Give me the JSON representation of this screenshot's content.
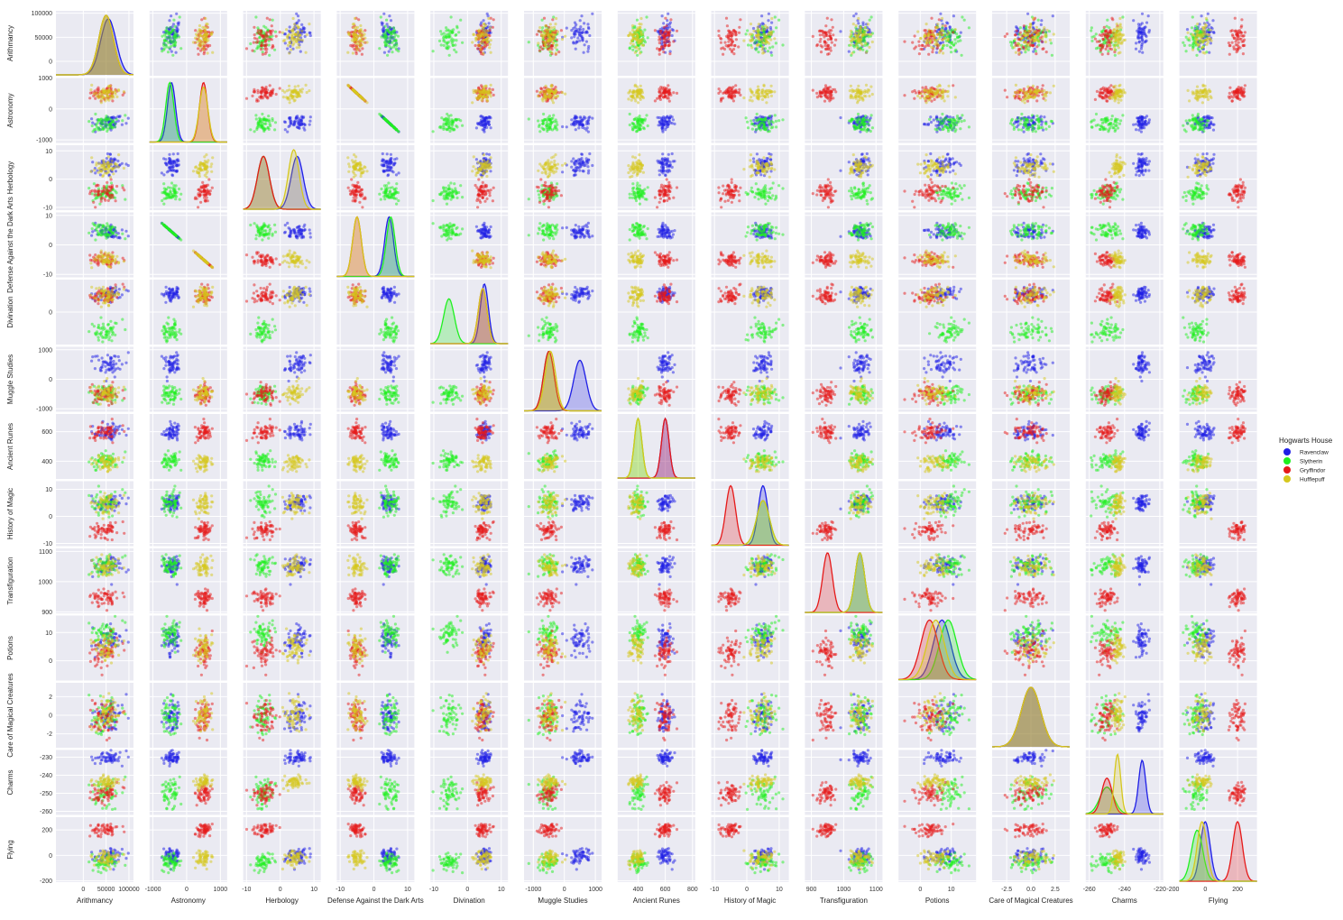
{
  "chart_data": {
    "type": "scatter",
    "title": "",
    "variables": [
      {
        "name": "Arithmancy",
        "range": [
          -60000,
          110000
        ],
        "ticks": [
          0,
          50000,
          100000
        ],
        "tick_labels": [
          "0",
          "50000",
          "100000"
        ],
        "means": {
          "Ravenclaw": 55000,
          "Slytherin": 50000,
          "Gryffindor": 50000,
          "Hufflepuff": 50000
        },
        "sds": {
          "Ravenclaw": 17000,
          "Slytherin": 16000,
          "Gryffindor": 16000,
          "Hufflepuff": 16000
        }
      },
      {
        "name": "Astronomy",
        "range": [
          -1100,
          1200
        ],
        "ticks": [
          -1000,
          0,
          1000
        ],
        "tick_labels": [
          "-1000",
          "0",
          "1000"
        ],
        "means": {
          "Ravenclaw": -450,
          "Slytherin": -500,
          "Gryffindor": 500,
          "Hufflepuff": 500
        },
        "sds": {
          "Ravenclaw": 120,
          "Slytherin": 120,
          "Gryffindor": 120,
          "Hufflepuff": 130
        }
      },
      {
        "name": "Herbology",
        "range": [
          -11,
          12
        ],
        "ticks": [
          -10,
          0,
          10
        ],
        "tick_labels": [
          "-10",
          "0",
          "10"
        ],
        "means": {
          "Ravenclaw": 5,
          "Slytherin": -5,
          "Gryffindor": -5,
          "Hufflepuff": 4
        },
        "sds": {
          "Ravenclaw": 1.8,
          "Slytherin": 1.8,
          "Gryffindor": 1.8,
          "Hufflepuff": 1.6
        }
      },
      {
        "name": "Defense Against the Dark Arts",
        "range": [
          -11,
          12
        ],
        "ticks": [
          -10,
          0,
          10
        ],
        "tick_labels": [
          "-10",
          "0",
          "10"
        ],
        "means": {
          "Ravenclaw": 4.5,
          "Slytherin": 5,
          "Gryffindor": -5,
          "Hufflepuff": -5
        },
        "sds": {
          "Ravenclaw": 1.3,
          "Slytherin": 1.3,
          "Gryffindor": 1.3,
          "Hufflepuff": 1.3
        }
      },
      {
        "name": "Divination",
        "range": [
          -11,
          12
        ],
        "ticks": [
          -10,
          0,
          10
        ],
        "tick_labels": [
          "-10",
          "0",
          "10"
        ],
        "means": {
          "Ravenclaw": 5,
          "Slytherin": -5.5,
          "Gryffindor": 4.5,
          "Hufflepuff": 4.5
        },
        "sds": {
          "Ravenclaw": 1.2,
          "Slytherin": 1.6,
          "Gryffindor": 1.3,
          "Hufflepuff": 1.3
        }
      },
      {
        "name": "Muggle Studies",
        "range": [
          -1300,
          1200
        ],
        "ticks": [
          -1000,
          0,
          1000
        ],
        "tick_labels": [
          "-1000",
          "0",
          "1000"
        ],
        "means": {
          "Ravenclaw": 500,
          "Slytherin": -500,
          "Gryffindor": -500,
          "Hufflepuff": -450
        },
        "sds": {
          "Ravenclaw": 200,
          "Slytherin": 170,
          "Gryffindor": 170,
          "Hufflepuff": 170
        }
      },
      {
        "name": "Ancient Runes",
        "range": [
          250,
          820
        ],
        "ticks": [
          400,
          600,
          800
        ],
        "tick_labels": [
          "400",
          "600",
          "800"
        ],
        "means": {
          "Ravenclaw": 600,
          "Slytherin": 400,
          "Gryffindor": 600,
          "Hufflepuff": 400
        },
        "sds": {
          "Ravenclaw": 28,
          "Slytherin": 28,
          "Gryffindor": 28,
          "Hufflepuff": 28
        }
      },
      {
        "name": "History of Magic",
        "range": [
          -11,
          13
        ],
        "ticks": [
          -10,
          0,
          10
        ],
        "tick_labels": [
          "-10",
          "0",
          "10"
        ],
        "means": {
          "Ravenclaw": 5,
          "Slytherin": 5,
          "Gryffindor": -5,
          "Hufflepuff": 5
        },
        "sds": {
          "Ravenclaw": 1.5,
          "Slytherin": 2,
          "Gryffindor": 1.5,
          "Hufflepuff": 2
        }
      },
      {
        "name": "Transfiguration",
        "range": [
          880,
          1120
        ],
        "ticks": [
          900,
          1000,
          1100
        ],
        "tick_labels": [
          "900",
          "1000",
          "1100"
        ],
        "means": {
          "Ravenclaw": 1050,
          "Slytherin": 1050,
          "Gryffindor": 950,
          "Hufflepuff": 1050
        },
        "sds": {
          "Ravenclaw": 15,
          "Slytherin": 15,
          "Gryffindor": 15,
          "Hufflepuff": 15
        }
      },
      {
        "name": "Potions",
        "range": [
          -7,
          18
        ],
        "ticks": [
          0,
          10
        ],
        "tick_labels": [
          "0",
          "10"
        ],
        "means": {
          "Ravenclaw": 7,
          "Slytherin": 9,
          "Gryffindor": 3,
          "Hufflepuff": 5
        },
        "sds": {
          "Ravenclaw": 2.8,
          "Slytherin": 2.8,
          "Gryffindor": 2.8,
          "Hufflepuff": 2.8
        }
      },
      {
        "name": "Care of Magical Creatures",
        "range": [
          -4,
          4
        ],
        "ticks": [
          -2.5,
          0,
          2.5
        ],
        "tick_labels": [
          "-2.5",
          "0.0",
          "2.5"
        ],
        "means": {
          "Ravenclaw": 0,
          "Slytherin": 0,
          "Gryffindor": 0,
          "Hufflepuff": 0
        },
        "sds": {
          "Ravenclaw": 1,
          "Slytherin": 1,
          "Gryffindor": 1,
          "Hufflepuff": 1
        }
      },
      {
        "name": "Charms",
        "range": [
          -262,
          -218
        ],
        "ticks": [
          -260,
          -240,
          -220
        ],
        "tick_labels": [
          "-260",
          "-240",
          "-220"
        ],
        "means": {
          "Ravenclaw": -230,
          "Slytherin": -250,
          "Gryffindor": -250,
          "Hufflepuff": -244
        },
        "sds": {
          "Ravenclaw": 2,
          "Slytherin": 4,
          "Gryffindor": 3,
          "Hufflepuff": 1.8
        }
      },
      {
        "name": "Flying",
        "range": [
          -160,
          320
        ],
        "ticks": [
          -200,
          0,
          200
        ],
        "tick_labels": [
          "-200",
          "0",
          "200"
        ],
        "means": {
          "Ravenclaw": 0,
          "Slytherin": -50,
          "Gryffindor": 200,
          "Hufflepuff": -20
        },
        "sds": {
          "Ravenclaw": 30,
          "Slytherin": 35,
          "Gryffindor": 30,
          "Hufflepuff": 30
        }
      }
    ],
    "y_tick_overrides": {
      "Arithmancy": {
        "range": [
          -30000,
          105000
        ],
        "ticks": [
          0,
          50000,
          100000
        ],
        "tick_labels": [
          "0",
          "50000",
          "100000"
        ]
      },
      "Astronomy": {
        "range": [
          -1100,
          1000
        ],
        "ticks": [
          -1000,
          0,
          1000
        ],
        "tick_labels": [
          "-1000",
          "0",
          "1000"
        ]
      },
      "Herbology": {
        "range": [
          -11,
          12
        ],
        "ticks": [
          -10,
          0,
          10
        ],
        "tick_labels": [
          "-10",
          "0",
          "10"
        ]
      },
      "Defense Against the Dark Arts": {
        "range": [
          -11,
          11
        ],
        "ticks": [
          -10,
          0,
          10
        ],
        "tick_labels": [
          "-10",
          "0",
          "10"
        ]
      },
      "Divination": {
        "range": [
          -9,
          9
        ],
        "ticks": [
          0
        ],
        "tick_labels": [
          "0"
        ]
      },
      "Muggle Studies": {
        "range": [
          -1100,
          1100
        ],
        "ticks": [
          -1000,
          0,
          1000
        ],
        "tick_labels": [
          "-1000",
          "0",
          "1000"
        ]
      },
      "Ancient Runes": {
        "range": [
          280,
          720
        ],
        "ticks": [
          400,
          600
        ],
        "tick_labels": [
          "400",
          "600"
        ]
      },
      "History of Magic": {
        "range": [
          -11,
          13
        ],
        "ticks": [
          -10,
          0,
          10
        ],
        "tick_labels": [
          "-10",
          "0",
          "10"
        ]
      },
      "Transfiguration": {
        "range": [
          895,
          1110
        ],
        "ticks": [
          900,
          1000,
          1100
        ],
        "tick_labels": [
          "900",
          "1000",
          "1100"
        ]
      },
      "Potions": {
        "range": [
          -7,
          16
        ],
        "ticks": [
          0,
          10
        ],
        "tick_labels": [
          "0",
          "10"
        ]
      },
      "Care of Magical Creatures": {
        "range": [
          -3.5,
          3.5
        ],
        "ticks": [
          -2,
          0,
          2
        ],
        "tick_labels": [
          "-2",
          "0",
          "2"
        ]
      },
      "Charms": {
        "range": [
          -262,
          -226
        ],
        "ticks": [
          -260,
          -250,
          -240,
          -230
        ],
        "tick_labels": [
          "-260",
          "-250",
          "-240",
          "-230"
        ]
      },
      "Flying": {
        "range": [
          -210,
          300
        ],
        "ticks": [
          -200,
          0,
          200
        ],
        "tick_labels": [
          "-200",
          "0",
          "200"
        ]
      }
    },
    "houses": [
      "Ravenclaw",
      "Slytherin",
      "Gryffindor",
      "Hufflepuff"
    ],
    "colors": {
      "Ravenclaw": "#1f1fe6",
      "Slytherin": "#1ff01f",
      "Gryffindor": "#e61a1a",
      "Hufflepuff": "#d6c81e"
    },
    "legend_title": "Hogwarts House",
    "legend_position": "right",
    "grid": true
  }
}
